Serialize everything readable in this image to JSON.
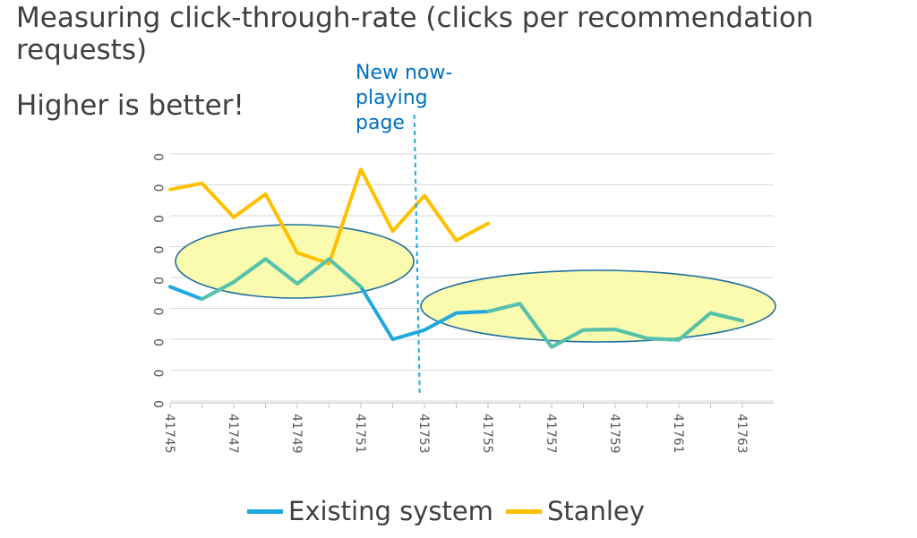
{
  "title": "Measuring click-through-rate (clicks per recommendation requests)",
  "subtitle": "Higher is better!",
  "annotation": "New now-playing page",
  "colors": {
    "existing": "#1fa8e0",
    "stanley": "#ffc000",
    "overlap": "#58c2a8",
    "ellipse_fill": "#fbfbb0",
    "ellipse_stroke": "#1e6fa0",
    "annotation_line": "#1fa8e0",
    "annotation_text": "#0070c0",
    "grid": "#d9d9d9",
    "axis_text": "#595959"
  },
  "chart_data": {
    "type": "line",
    "xlabel": "",
    "ylabel": "",
    "x": [
      41745,
      41746,
      41747,
      41748,
      41749,
      41750,
      41751,
      41752,
      41753,
      41754,
      41755,
      41756,
      41757,
      41758,
      41759,
      41760,
      41761,
      41762,
      41763
    ],
    "x_tick_labels": [
      "41745",
      "41747",
      "41749",
      "41751",
      "41753",
      "41755",
      "41757",
      "41759",
      "41761",
      "41763"
    ],
    "y_tick_labels": [
      "0",
      "0",
      "0",
      "0",
      "0",
      "0",
      "0",
      "0",
      "0"
    ],
    "ylim": [
      0,
      8
    ],
    "grid": true,
    "legend_position": "bottom",
    "series": [
      {
        "name": "Existing system",
        "values": [
          3.7,
          3.3,
          3.85,
          4.6,
          3.8,
          4.6,
          3.7,
          2.0,
          2.3,
          2.85,
          2.9,
          3.15,
          1.75,
          2.3,
          2.32,
          2.03,
          1.98,
          2.85,
          2.6
        ]
      },
      {
        "name": "Stanley",
        "values": [
          6.85,
          7.05,
          5.95,
          6.7,
          4.8,
          4.45,
          7.5,
          5.5,
          6.65,
          5.2,
          5.75,
          null,
          null,
          null,
          null,
          null,
          null,
          null,
          null
        ]
      }
    ],
    "annotations": [
      {
        "text": "New now-playing page",
        "x": 41752.85
      }
    ]
  },
  "legend": [
    {
      "label": "Existing system",
      "color": "#1fa8e0"
    },
    {
      "label": "Stanley",
      "color": "#ffc000"
    }
  ]
}
